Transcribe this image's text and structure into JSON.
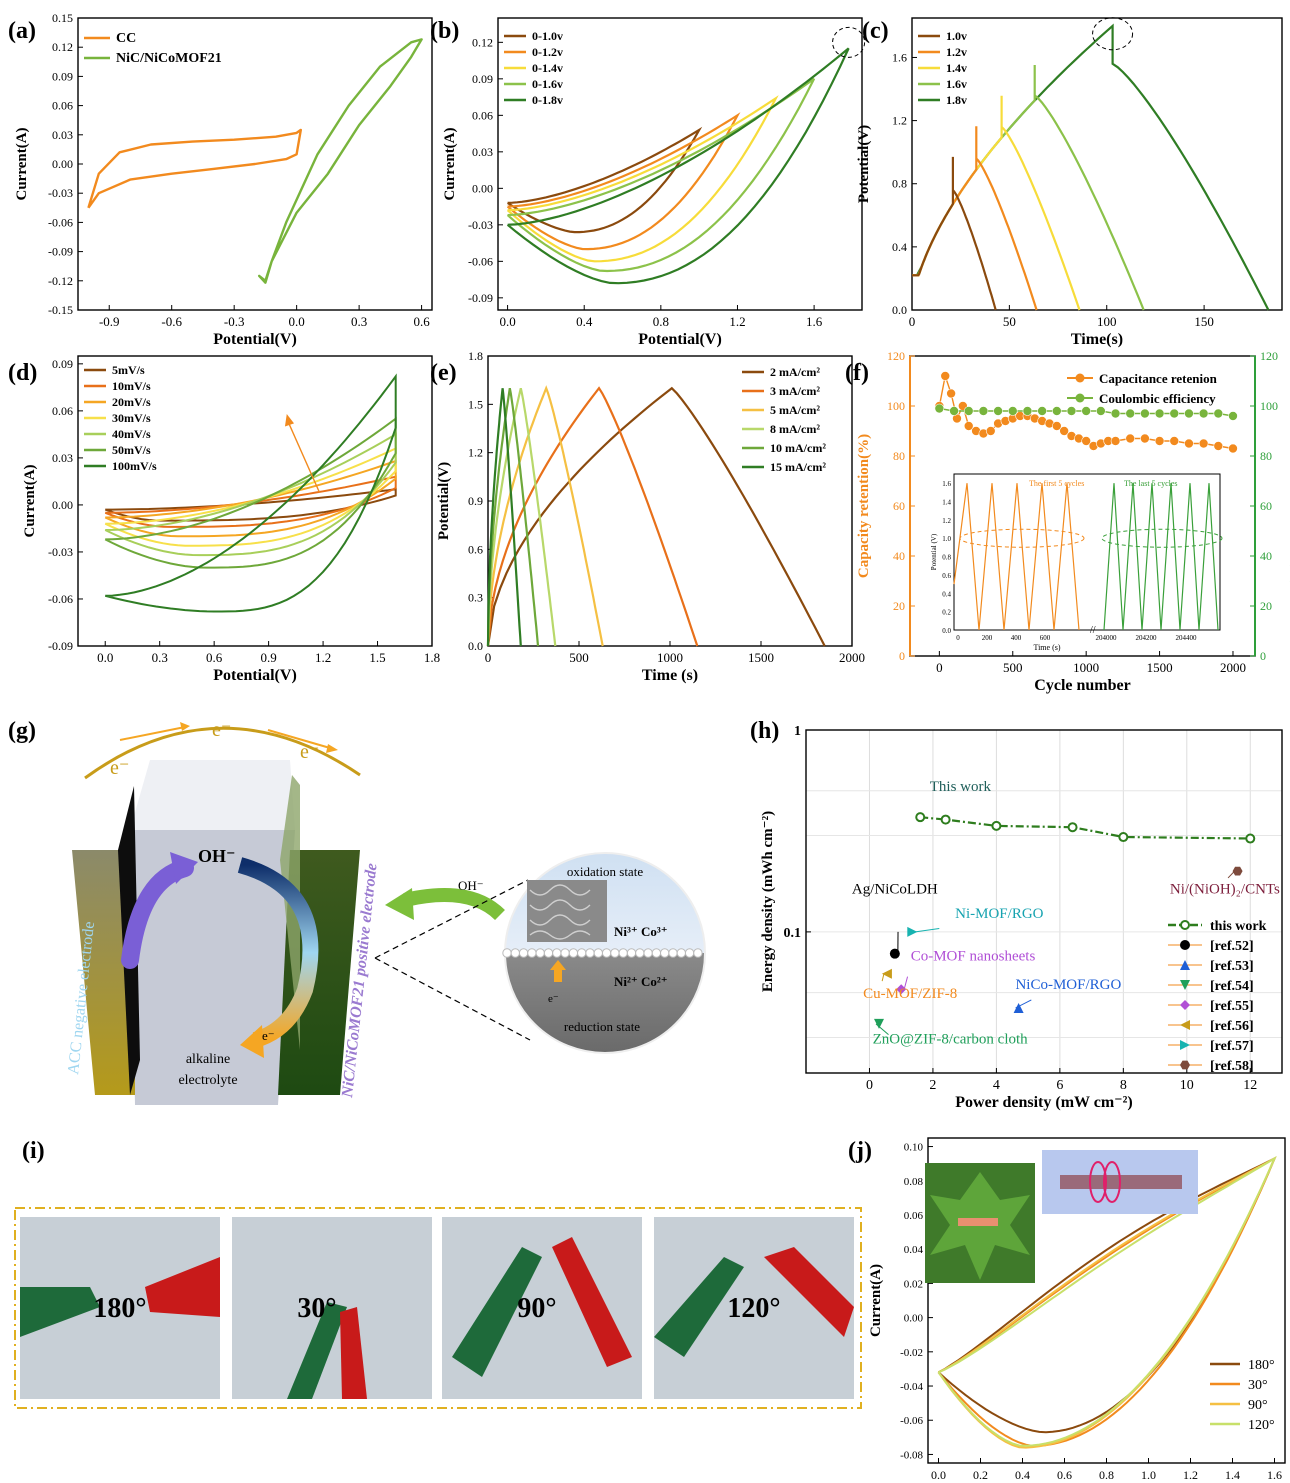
{
  "chart_data": [
    {
      "panel": "(a)",
      "type": "line",
      "xlabel": "Potential(V)",
      "ylabel": "Current(A)",
      "xlim": [
        -1.05,
        0.65
      ],
      "ylim": [
        -0.15,
        0.15
      ],
      "xticks": [
        -0.9,
        -0.6,
        -0.3,
        0.0,
        0.3,
        0.6
      ],
      "yticks": [
        -0.15,
        -0.12,
        -0.09,
        -0.06,
        -0.03,
        0.0,
        0.03,
        0.06,
        0.09,
        0.12,
        0.15
      ],
      "xtick_labels": [
        "-0.9",
        "-0.6",
        "-0.3",
        "0.0",
        "0.3",
        "0.6"
      ],
      "ytick_labels": [
        "-0.15",
        "-0.12",
        "-0.09",
        "-0.06",
        "-0.03",
        "0.00",
        "0.03",
        "0.06",
        "0.09",
        "0.12",
        "0.15"
      ],
      "legend": "top-left",
      "series": [
        {
          "name": "CC",
          "color": "#f28a1e",
          "closed": true,
          "x": [
            -1.0,
            -0.95,
            -0.8,
            -0.6,
            -0.4,
            -0.2,
            -0.05,
            0.0,
            0.02,
            0.0,
            -0.1,
            -0.3,
            -0.5,
            -0.7,
            -0.85,
            -0.95,
            -1.0
          ],
          "y": [
            -0.045,
            -0.03,
            -0.016,
            -0.01,
            -0.005,
            0.0,
            0.005,
            0.01,
            0.035,
            0.032,
            0.028,
            0.025,
            0.023,
            0.02,
            0.012,
            -0.01,
            -0.045
          ]
        },
        {
          "name": "NiC/NiCoMOF21",
          "color": "#78b43c",
          "closed": true,
          "x": [
            -0.15,
            -0.12,
            0.0,
            0.15,
            0.3,
            0.45,
            0.55,
            0.6,
            0.55,
            0.4,
            0.25,
            0.1,
            -0.05,
            -0.12,
            -0.15,
            -0.18,
            -0.15
          ],
          "y": [
            -0.12,
            -0.1,
            -0.05,
            -0.01,
            0.04,
            0.08,
            0.11,
            0.128,
            0.125,
            0.1,
            0.06,
            0.01,
            -0.06,
            -0.1,
            -0.122,
            -0.115,
            -0.12
          ]
        }
      ]
    },
    {
      "panel": "(b)",
      "type": "line",
      "xlabel": "Potential(V)",
      "ylabel": "Current(A)",
      "xlim": [
        -0.05,
        1.85
      ],
      "ylim": [
        -0.1,
        0.14
      ],
      "xticks": [
        0.0,
        0.4,
        0.8,
        1.2,
        1.6
      ],
      "yticks": [
        -0.09,
        -0.06,
        -0.03,
        0.0,
        0.03,
        0.06,
        0.09,
        0.12
      ],
      "xtick_labels": [
        "0.0",
        "0.4",
        "0.8",
        "1.2",
        "1.6"
      ],
      "ytick_labels": [
        "-0.09",
        "-0.06",
        "-0.03",
        "0.00",
        "0.03",
        "0.06",
        "0.09",
        "0.12"
      ],
      "legend": "top-left",
      "series": [
        {
          "name": "0-1.0v",
          "color": "#8b4a0e",
          "vmax": 1.0,
          "imax": 0.048,
          "imin": -0.036,
          "xmin": 0.35,
          "ustart": -0.012
        },
        {
          "name": "0-1.2v",
          "color": "#f28a1e",
          "vmax": 1.2,
          "imax": 0.06,
          "imin": -0.05,
          "xmin": 0.4,
          "ustart": -0.015
        },
        {
          "name": "0-1.4v",
          "color": "#f7dc3a",
          "vmax": 1.4,
          "imax": 0.074,
          "imin": -0.06,
          "xmin": 0.45,
          "ustart": -0.018
        },
        {
          "name": "0-1.6v",
          "color": "#8cc24a",
          "vmax": 1.6,
          "imax": 0.09,
          "imin": -0.068,
          "xmin": 0.5,
          "ustart": -0.022
        },
        {
          "name": "0-1.8v",
          "color": "#2f7d24",
          "vmax": 1.78,
          "imax": 0.115,
          "imin": -0.078,
          "xmin": 0.55,
          "ustart": -0.03
        }
      ]
    },
    {
      "panel": "(c)",
      "type": "line",
      "xlabel": "Time(s)",
      "ylabel": "Potential(V)",
      "xlim": [
        0,
        190
      ],
      "ylim": [
        0,
        1.85
      ],
      "xticks": [
        0,
        50,
        100,
        150
      ],
      "yticks": [
        0.0,
        0.4,
        0.8,
        1.2,
        1.6
      ],
      "xtick_labels": [
        "0",
        "50",
        "100",
        "150"
      ],
      "ytick_labels": [
        "0.0",
        "0.4",
        "0.8",
        "1.2",
        "1.6"
      ],
      "legend": "top-left",
      "series": [
        {
          "name": "1.0v",
          "color": "#8b4a0e",
          "vmax": 1.0,
          "tpeak": 21,
          "tend": 43
        },
        {
          "name": "1.2v",
          "color": "#f28a1e",
          "vmax": 1.2,
          "tpeak": 33,
          "tend": 64
        },
        {
          "name": "1.4v",
          "color": "#f7dc3a",
          "vmax": 1.4,
          "tpeak": 46,
          "tend": 86
        },
        {
          "name": "1.6v",
          "color": "#8cc24a",
          "vmax": 1.6,
          "tpeak": 63,
          "tend": 119
        },
        {
          "name": "1.8v",
          "color": "#2f7d24",
          "vmax": 1.8,
          "tpeak": 103,
          "tend": 183
        }
      ]
    },
    {
      "panel": "(d)",
      "type": "line",
      "xlabel": "Potential(V)",
      "ylabel": "Current(A)",
      "xlim": [
        -0.15,
        1.8
      ],
      "ylim": [
        -0.09,
        0.095
      ],
      "xticks": [
        0.0,
        0.3,
        0.6,
        0.9,
        1.2,
        1.5,
        1.8
      ],
      "yticks": [
        -0.09,
        -0.06,
        -0.03,
        0.0,
        0.03,
        0.06,
        0.09
      ],
      "xtick_labels": [
        "0.0",
        "0.3",
        "0.6",
        "0.9",
        "1.2",
        "1.5",
        "1.8"
      ],
      "ytick_labels": [
        "-0.09",
        "-0.06",
        "-0.03",
        "0.00",
        "0.03",
        "0.06",
        "0.09"
      ],
      "legend": "top-left",
      "series": [
        {
          "name": "5mV/s",
          "color": "#8b4a0e",
          "top": 0.01,
          "bot": -0.01,
          "p0": -0.003
        },
        {
          "name": "10mV/s",
          "color": "#e8701a",
          "top": 0.018,
          "bot": -0.014,
          "p0": -0.005
        },
        {
          "name": "20mV/s",
          "color": "#f5a623",
          "top": 0.028,
          "bot": -0.02,
          "p0": -0.008
        },
        {
          "name": "30mV/s",
          "color": "#f7e04a",
          "top": 0.036,
          "bot": -0.026,
          "p0": -0.012
        },
        {
          "name": "40mV/s",
          "color": "#a8cf5a",
          "top": 0.045,
          "bot": -0.032,
          "p0": -0.016
        },
        {
          "name": "50mV/s",
          "color": "#6ea83a",
          "top": 0.055,
          "bot": -0.04,
          "p0": -0.022
        },
        {
          "name": "100mV/s",
          "color": "#2f7d24",
          "top": 0.082,
          "bot": -0.068,
          "p0": -0.058
        }
      ]
    },
    {
      "panel": "(e)",
      "type": "line",
      "xlabel": "Time (s)",
      "ylabel": "Potential(V)",
      "xlim": [
        0,
        2000
      ],
      "ylim": [
        0,
        1.8
      ],
      "xticks": [
        0,
        500,
        1000,
        1500,
        2000
      ],
      "yticks": [
        0.0,
        0.3,
        0.6,
        0.9,
        1.2,
        1.5,
        1.8
      ],
      "xtick_labels": [
        "0",
        "500",
        "1000",
        "1500",
        "2000"
      ],
      "ytick_labels": [
        "0.0",
        "0.3",
        "0.6",
        "0.9",
        "1.2",
        "1.5",
        "1.8"
      ],
      "legend": "top-right",
      "series": [
        {
          "name": "2 mA/cm²",
          "color": "#8b4a0e",
          "tpeak": 1010,
          "tend": 1850
        },
        {
          "name": "3 mA/cm²",
          "color": "#e8701a",
          "tpeak": 610,
          "tend": 1150
        },
        {
          "name": "5 mA/cm²",
          "color": "#f5c043",
          "tpeak": 320,
          "tend": 630
        },
        {
          "name": "8 mA/cm²",
          "color": "#b8d86a",
          "tpeak": 180,
          "tend": 370
        },
        {
          "name": "10 mA/cm²",
          "color": "#6ea83a",
          "tpeak": 120,
          "tend": 275
        },
        {
          "name": "15 mA/cm²",
          "color": "#2f7d24",
          "tpeak": 80,
          "tend": 180
        }
      ]
    },
    {
      "panel": "(f)",
      "type": "scatter",
      "xlabel": "Cycle number",
      "ylabel_left": "Capacity retention(%)",
      "ylabel_right": "Coulombic efficiency(%)",
      "xlim": [
        -200,
        2150
      ],
      "ylim": [
        0,
        120
      ],
      "xticks": [
        0,
        500,
        1000,
        1500,
        2000
      ],
      "yticks": [
        0,
        20,
        40,
        60,
        80,
        100,
        120
      ],
      "xtick_labels": [
        "0",
        "500",
        "1000",
        "1500",
        "2000"
      ],
      "ytick_labels": [
        "0",
        "20",
        "40",
        "60",
        "80",
        "100",
        "120"
      ],
      "legend": "top-right",
      "series": [
        {
          "name": "Capacitance retenion",
          "color": "#f28a1e",
          "x": [
            0,
            40,
            80,
            120,
            160,
            200,
            250,
            300,
            350,
            400,
            450,
            500,
            550,
            600,
            650,
            700,
            750,
            800,
            850,
            900,
            950,
            1000,
            1050,
            1100,
            1150,
            1200,
            1300,
            1400,
            1500,
            1600,
            1700,
            1800,
            1900,
            2000
          ],
          "y": [
            100,
            112,
            105,
            95,
            100,
            92,
            90,
            89,
            90,
            93,
            94,
            95,
            96,
            96,
            95,
            94,
            93,
            92,
            90,
            88,
            87,
            86,
            84,
            85,
            86,
            86,
            87,
            87,
            86,
            86,
            85,
            85,
            84,
            83
          ]
        },
        {
          "name": "Coulombic efficiency",
          "color": "#78b43c",
          "x": [
            0,
            100,
            200,
            300,
            400,
            500,
            600,
            700,
            800,
            900,
            1000,
            1100,
            1200,
            1300,
            1400,
            1500,
            1600,
            1700,
            1800,
            1900,
            2000
          ],
          "y": [
            99,
            98,
            98,
            98,
            98,
            98,
            98,
            98,
            98,
            98,
            98,
            98,
            97,
            97,
            97,
            97,
            97,
            97,
            97,
            97,
            96
          ]
        }
      ],
      "inset": {
        "ylabel": "Potential (V)",
        "xlabel": "Time (s)",
        "yticks": [
          0.0,
          0.2,
          0.4,
          0.6,
          0.8,
          1.0,
          1.2,
          1.4,
          1.6
        ],
        "ytick_labels": [
          "0.0",
          "0.2",
          "0.4",
          "0.6",
          "0.8",
          "1.0",
          "1.2",
          "1.4",
          "1.6"
        ],
        "xtick_labels": [
          "0",
          "200",
          "400",
          "600",
          "204000",
          "204200",
          "204400"
        ],
        "annot_first": "The first 5 cycles",
        "annot_last": "The last 5 cycles"
      }
    },
    {
      "panel": "(h)",
      "type": "scatter",
      "xlabel": "Power density (mW cm⁻²)",
      "ylabel": "Energy density (mWh cm⁻²)",
      "xlim": [
        -2,
        13
      ],
      "ylim_log": [
        0.02,
        1
      ],
      "log_y": true,
      "grid": true,
      "xticks": [
        0,
        2,
        4,
        6,
        8,
        10,
        12
      ],
      "xtick_labels": [
        "0",
        "2",
        "4",
        "6",
        "8",
        "10",
        "12"
      ],
      "ytick_labels": [
        "0.1",
        "1"
      ],
      "legend": "right",
      "this_work": {
        "name": "this work",
        "label": "This work",
        "color": "#2e7d1e",
        "x": [
          1.6,
          2.4,
          4.0,
          6.4,
          8.0,
          12.0
        ],
        "y": [
          0.37,
          0.36,
          0.335,
          0.33,
          0.295,
          0.29
        ]
      },
      "refs": [
        {
          "name": "[ref.52]",
          "label": "Ag/NiCoLDH",
          "x": 0.8,
          "y": 0.078,
          "color": "#000000",
          "marker": "circle"
        },
        {
          "name": "[ref.53]",
          "label": "NiCo-MOF/RGO",
          "x": 4.7,
          "y": 0.042,
          "color": "#1f5fd6",
          "marker": "tri-up"
        },
        {
          "name": "[ref.54]",
          "label": "ZnO@ZIF-8/carbon cloth",
          "x": 0.3,
          "y": 0.035,
          "color": "#1f9f5a",
          "marker": "tri-down"
        },
        {
          "name": "[ref.55]",
          "label": "Co-MOF nanosheets",
          "x": 1.0,
          "y": 0.052,
          "color": "#b04fd6",
          "marker": "diamond"
        },
        {
          "name": "[ref.56]",
          "label": "Cu-MOF/ZIF-8",
          "x": 0.55,
          "y": 0.062,
          "color": "#c89c1a",
          "marker": "tri-left"
        },
        {
          "name": "[ref.57]",
          "label": "Ni-MOF/RGO",
          "x": 1.35,
          "y": 0.1,
          "color": "#17b3b0",
          "marker": "tri-right"
        },
        {
          "name": "[ref.58]",
          "label": "Ni/(NiOH)₂/CNTs",
          "x": 11.6,
          "y": 0.2,
          "color": "#7d4a3c",
          "marker": "hexagon"
        }
      ]
    },
    {
      "panel": "(j)",
      "type": "line",
      "xlabel": "Potential(V)",
      "ylabel": "Current(A)",
      "xlim": [
        -0.05,
        1.65
      ],
      "ylim": [
        -0.085,
        0.105
      ],
      "xticks": [
        0.0,
        0.2,
        0.4,
        0.6,
        0.8,
        1.0,
        1.2,
        1.4,
        1.6
      ],
      "yticks": [
        -0.08,
        -0.06,
        -0.04,
        -0.02,
        0.0,
        0.02,
        0.04,
        0.06,
        0.08,
        0.1
      ],
      "xtick_labels": [
        "0.0",
        "0.2",
        "0.4",
        "0.6",
        "0.8",
        "1.0",
        "1.2",
        "1.4",
        "1.6"
      ],
      "ytick_labels": [
        "-0.08",
        "-0.06",
        "-0.04",
        "-0.02",
        "0.00",
        "0.02",
        "0.04",
        "0.06",
        "0.08",
        "0.10"
      ],
      "legend": "bottom-right",
      "series": [
        {
          "name": "180°",
          "color": "#8b4a0e",
          "bot": -0.067,
          "xb": 0.5,
          "mid": 0.038
        },
        {
          "name": "30°",
          "color": "#f28a1e",
          "bot": -0.075,
          "xb": 0.45,
          "mid": 0.03
        },
        {
          "name": "90°",
          "color": "#f5c043",
          "bot": -0.076,
          "xb": 0.4,
          "mid": 0.032
        },
        {
          "name": "120°",
          "color": "#c8e06a",
          "bot": -0.075,
          "xb": 0.4,
          "mid": 0.025
        }
      ]
    }
  ],
  "panel_labels": {
    "a": "(a)",
    "b": "(b)",
    "c": "(c)",
    "d": "(d)",
    "e": "(e)",
    "f": "(f)",
    "g": "(g)",
    "h": "(h)",
    "i": "(i)",
    "j": "(j)"
  },
  "schematic": {
    "electrons": [
      "e⁻",
      "e⁻",
      "e⁻"
    ],
    "oh_inner": "OH⁻",
    "oh_outer": "OH⁻",
    "e_inner": "e⁻",
    "electrolyte": [
      "alkaline",
      "electrolyte"
    ],
    "negative_electrode": "ACC negative electrode",
    "positive_electrode": "NiC/NiCoMOF21 positive electrode",
    "oxidation_state": "oxidation state",
    "ni3": "Ni³⁺ Co³⁺",
    "ni2": "Ni²⁺ Co²⁺",
    "e_circle": "e⁻",
    "reduction_state": "reduction state"
  },
  "photos": {
    "angles": [
      "180°",
      "30°",
      "90°",
      "120°"
    ]
  }
}
